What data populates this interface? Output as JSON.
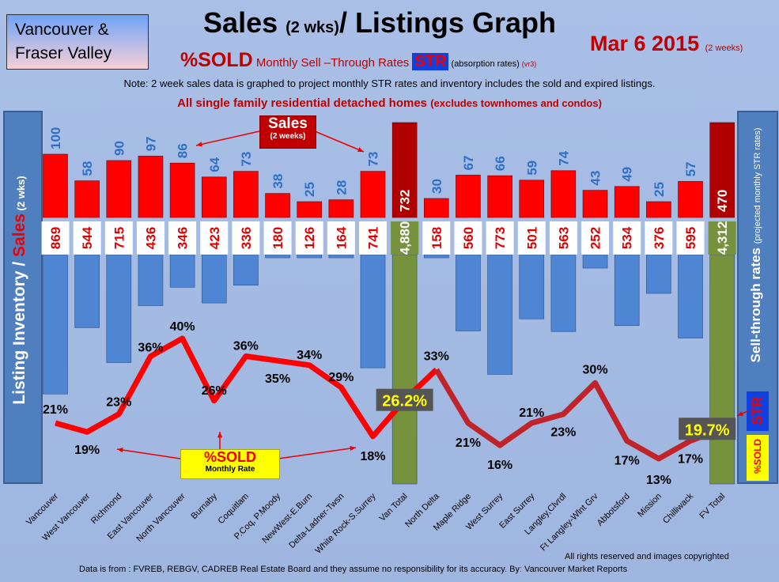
{
  "header": {
    "region_line1": "Vancouver &",
    "region_line2": "Fraser Valley",
    "title_a": "Sales ",
    "title_b": "(2 wks)",
    "title_c": "/ Listings Graph",
    "date": "Mar 6 2015",
    "date_note": "(2 weeks)",
    "sub_sold": "%SOLD",
    "sub_text": " Monthly Sell –Through Rates ",
    "sub_str": "STR",
    "sub_abs": " (absorption rates) ",
    "sub_vr": "(vr3)",
    "note": "Note: 2 week sales data is graphed to project monthly STR rates and inventory includes the sold and expired listings.",
    "single": "All single family residential detached homes ",
    "single_note": "(excludes townhomes and condos)"
  },
  "left_axis": {
    "a": "Listing Inventory / ",
    "b": "Sales",
    "c": " (2 wks)"
  },
  "right_axis": {
    "a": "Sell-through rates ",
    "b": "(projected monthly STR rates)",
    "str": "STR",
    "sold": "%SOLD"
  },
  "callouts": {
    "sales": "Sales",
    "sales_sub": "(2 weeks)",
    "sold": "%SOLD",
    "sold_sub": "Monthly Rate"
  },
  "footer": {
    "rights": "All rights reserved and  images copyrighted",
    "source": "Data is from : FVREB, REBGV, CADREB Real Estate Board and they assume no responsibility for its accuracy. By: Vancouver Market Reports"
  },
  "colors": {
    "sales": "#ff0000",
    "listings": "#4f86d4",
    "total_sales": "#b00000",
    "total_listings": "#76923c",
    "line": "#ff0000",
    "line_fv": "#c0242a"
  },
  "chart_data": {
    "type": "bar",
    "title": "Sales (2 wks)/ Listings Graph",
    "categories": [
      "Vancouver",
      "West Vancouver",
      "Richmond",
      "East Vancouver",
      "North Vancouver",
      "Burnaby",
      "Coquitlam",
      "P.Coq, P.Moody",
      "NewWest-E.Burn",
      "Delta-Ladner-Twsn",
      "White Rock-S.Surrey",
      "Van Total",
      "North Delta",
      "Maple Ridge",
      "West Surrey",
      "East Surrey",
      "Langley,Clvrdl",
      "Ft Langley-Wlnt Grv",
      "Abbotsford",
      "Mission",
      "Chilliwack",
      "FV Total"
    ],
    "totals": [
      11,
      21
    ],
    "series": [
      {
        "name": "Sales (2 weeks)",
        "values": [
          100,
          58,
          90,
          97,
          86,
          64,
          73,
          38,
          25,
          28,
          73,
          732,
          30,
          67,
          66,
          59,
          74,
          43,
          49,
          25,
          57,
          470
        ],
        "labels": [
          "100",
          "58",
          "90",
          "97",
          "86",
          "64",
          "73",
          "38",
          "25",
          "28",
          "73",
          "732",
          "30",
          "67",
          "66",
          "59",
          "74",
          "43",
          "49",
          "25",
          "57",
          "470"
        ]
      },
      {
        "name": "Listing Inventory",
        "values": [
          869,
          544,
          715,
          436,
          346,
          423,
          336,
          180,
          126,
          164,
          741,
          4880,
          158,
          560,
          773,
          501,
          563,
          252,
          534,
          376,
          595,
          4312
        ],
        "labels": [
          "869",
          "544",
          "715",
          "436",
          "346",
          "423",
          "336",
          "180",
          "126",
          "164",
          "741",
          "4,880",
          "158",
          "560",
          "773",
          "501",
          "563",
          "252",
          "534",
          "376",
          "595",
          "4,312"
        ]
      },
      {
        "name": "%SOLD Monthly Rate",
        "type": "line",
        "values": [
          21,
          19,
          23,
          36,
          40,
          26,
          36,
          35,
          34,
          29,
          18,
          26.2,
          33,
          21,
          16,
          21,
          23,
          30,
          17,
          13,
          17,
          19.7
        ],
        "labels": [
          "21%",
          "19%",
          "23%",
          "36%",
          "40%",
          "26%",
          "36%",
          "35%",
          "34%",
          "29%",
          "18%",
          "26.2%",
          "33%",
          "21%",
          "16%",
          "21%",
          "23%",
          "30%",
          "17%",
          "13%",
          "17%",
          "19.7%"
        ]
      }
    ]
  }
}
